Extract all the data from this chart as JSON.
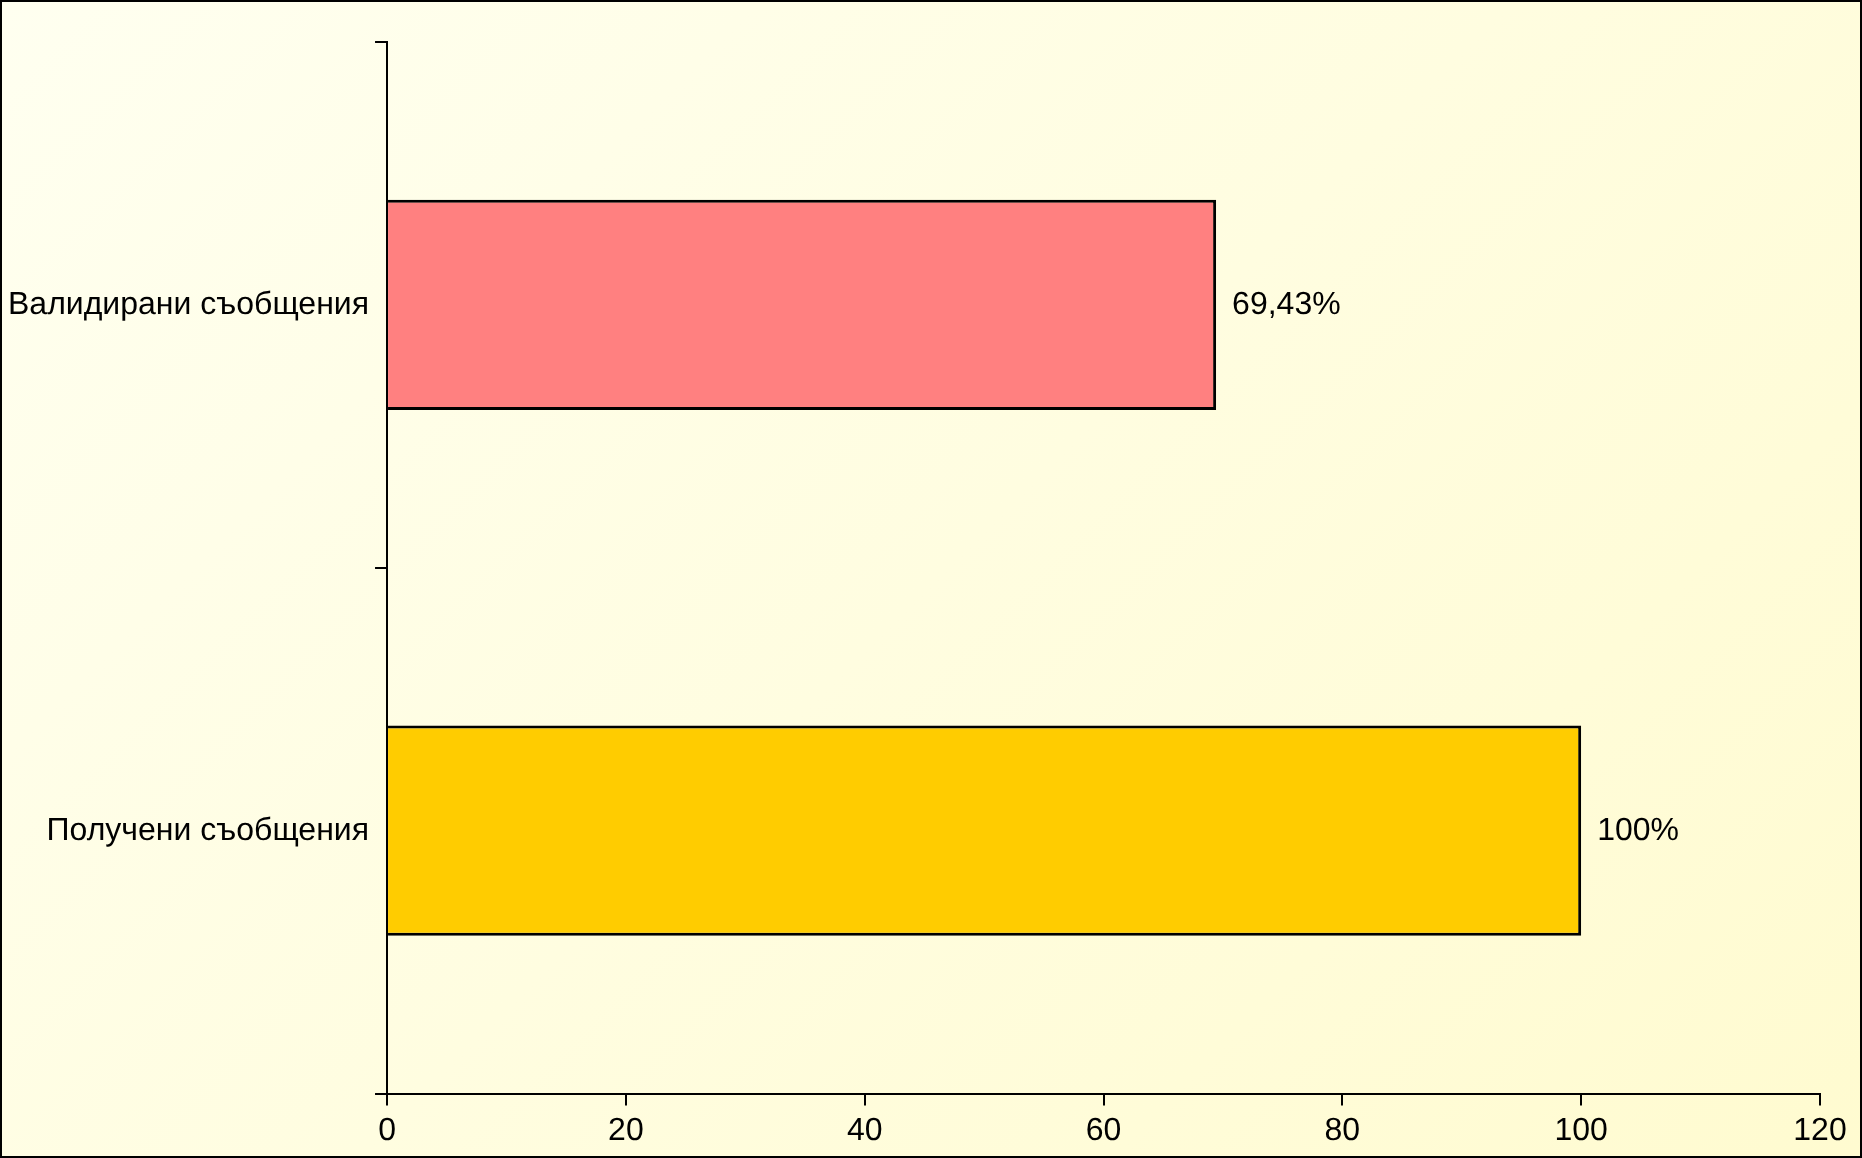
{
  "chart_data": {
    "type": "bar",
    "orientation": "horizontal",
    "categories": [
      "Валидирани съобщения",
      "Получени съобщения"
    ],
    "values": [
      69.43,
      100
    ],
    "colors": [
      "#ff8080",
      "#ffcc00"
    ],
    "value_labels": [
      "69,43%",
      "100%"
    ],
    "xlim": [
      0,
      120
    ],
    "xticks": [
      0,
      20,
      40,
      60,
      80,
      100,
      120
    ],
    "grid": false,
    "legend": false
  }
}
